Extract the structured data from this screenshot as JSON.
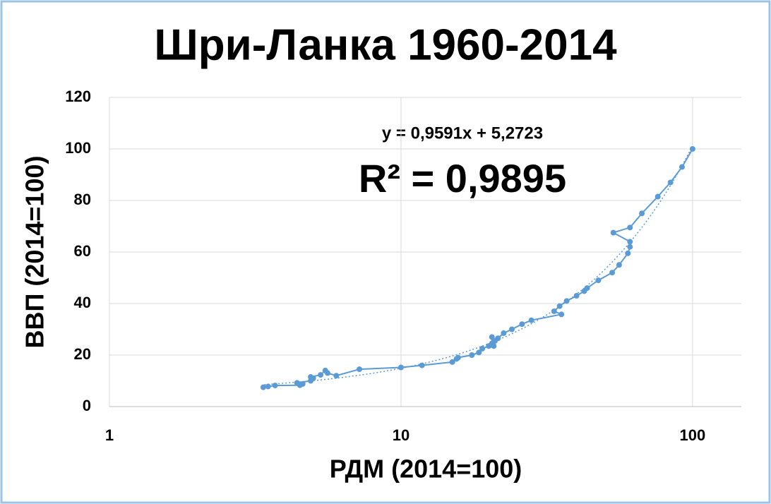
{
  "chart_data": {
    "type": "scatter",
    "title": "Шри-Ланка 1960-2014",
    "x_label": "РДМ (2014=100)",
    "y_label": "ВВП (2014=100)",
    "x": [
      3.37,
      3.5,
      3.7,
      4.5,
      4.6,
      4.4,
      4.9,
      5.0,
      4.9,
      5.3,
      5.5,
      5.6,
      6.0,
      7.2,
      10,
      11.8,
      15,
      15.5,
      15.7,
      17.5,
      18.5,
      19,
      20,
      20.5,
      20.5,
      21,
      20.8,
      21.5,
      22.5,
      24,
      26,
      28,
      35.5,
      33.5,
      35,
      37,
      40,
      42.5,
      43.5,
      47.5,
      53,
      56,
      60,
      61,
      61,
      53.5,
      61,
      67,
      76,
      84,
      92,
      100
    ],
    "values": [
      7.5,
      7.8,
      8.2,
      8.3,
      8.8,
      9.2,
      10.0,
      11.0,
      11.5,
      12.3,
      14.0,
      13.0,
      12.0,
      14.5,
      15.2,
      16.0,
      17.3,
      18.5,
      19.0,
      20.0,
      21.0,
      22.5,
      23.5,
      24.5,
      27.0,
      25.5,
      23.5,
      26.5,
      28.5,
      30,
      32,
      33.5,
      35.8,
      37,
      39,
      41,
      43,
      44.8,
      46,
      49,
      52,
      55,
      59.5,
      62,
      64,
      67.5,
      69.5,
      75,
      81.5,
      87,
      93,
      100
    ],
    "color": "#5b9bd5",
    "xscale": "log",
    "xlim": [
      1,
      147
    ],
    "xticks": [
      1,
      10,
      100
    ],
    "ylim": [
      0,
      120
    ],
    "yticks": [
      0,
      20,
      40,
      60,
      80,
      100,
      120
    ],
    "grid": true,
    "trendline": {
      "slope": 0.9591,
      "intercept": 5.2723,
      "label": "y = 0,9591x + 5,2723",
      "r2": 0.9895,
      "r2_label": "R² = 0,9895"
    }
  }
}
